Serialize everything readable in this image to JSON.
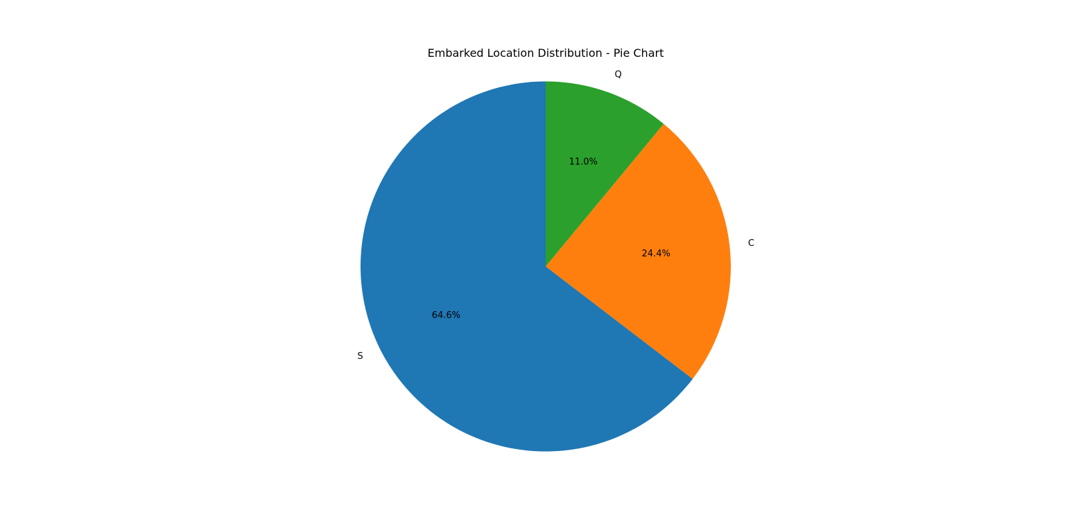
{
  "chart_data": {
    "type": "pie",
    "title": "Embarked Location Distribution - Pie Chart",
    "categories": [
      "S",
      "C",
      "Q"
    ],
    "values": [
      64.6,
      24.4,
      11.0
    ],
    "value_labels": [
      "64.6%",
      "24.4%",
      "11.0%"
    ],
    "colors": [
      "#1f77b4",
      "#ff7f0e",
      "#2ca02c"
    ],
    "start_angle_deg": 90,
    "direction": "counterclockwise"
  }
}
